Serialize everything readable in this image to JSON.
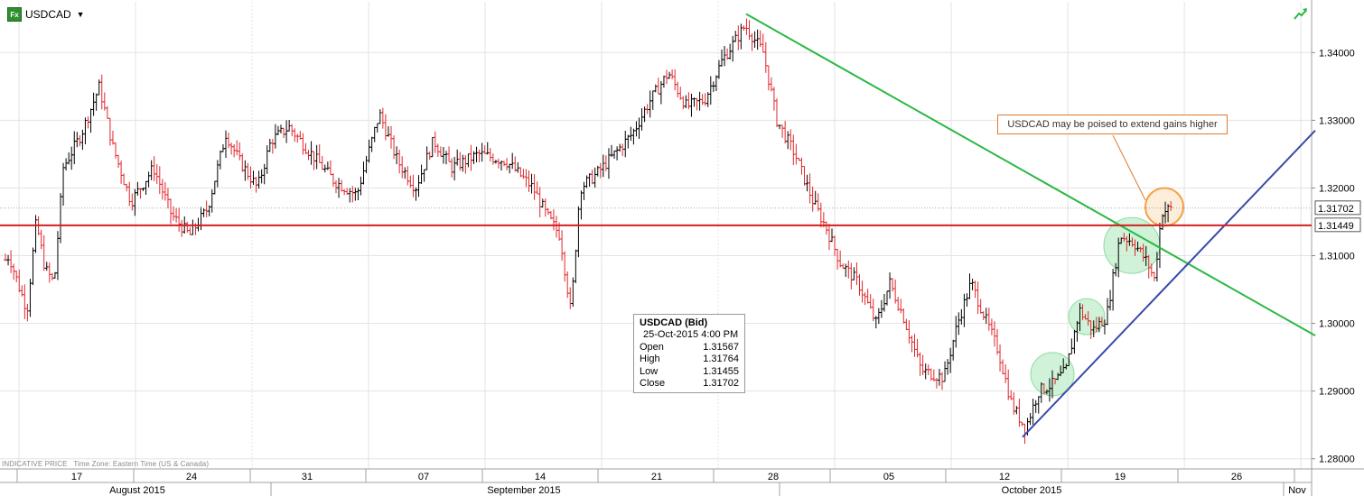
{
  "header": {
    "symbol": "USDCAD",
    "app_icon": "fx-icon",
    "dropdown_icon": "caret-down-icon",
    "trend_icon": "trend-arrow-icon"
  },
  "footer": {
    "indicative": "INDICATIVE PRICE",
    "timezone": "Time Zone: Eastern Time (US & Canada)"
  },
  "annotation": {
    "text": "USDCAD may be poised to extend gains higher"
  },
  "infobox": {
    "title": "USDCAD (Bid)",
    "datetime": "25-Oct-2015 4:00 PM",
    "rows": [
      {
        "label": "Open",
        "value": "1.31567"
      },
      {
        "label": "High",
        "value": "1.31764"
      },
      {
        "label": "Low",
        "value": "1.31455"
      },
      {
        "label": "Close",
        "value": "1.31702"
      }
    ]
  },
  "colors": {
    "up_bar": "#000000",
    "down_bar": "#e0262b",
    "resistance_line": "#2bb845",
    "support_line": "#3a4aa8",
    "horizontal_level": "#d42020",
    "highlight_green": "#bfeecb",
    "highlight_orange": "#f5a042"
  },
  "chart_data": {
    "type": "ohlc",
    "instrument": "USDCAD",
    "ylim": [
      1.2785,
      1.3475
    ],
    "y_ticks": [
      1.28,
      1.29,
      1.3,
      1.31,
      1.32,
      1.33,
      1.34
    ],
    "y_tick_labels": [
      "1.28000",
      "1.29000",
      "1.30000",
      "1.31000",
      "1.32000",
      "1.33000",
      "1.34000"
    ],
    "x_day_labels": [
      "17",
      "24",
      "31",
      "07",
      "14",
      "21",
      "28",
      "05",
      "12",
      "19",
      "26"
    ],
    "x_month_labels": [
      "August 2015",
      "September 2015",
      "October 2015",
      "Nov"
    ],
    "current_price": "1.31702",
    "level_price": "1.31449",
    "key_points": [
      {
        "date": "2015-08-20",
        "high": 1.3365
      },
      {
        "date": "2015-09-16",
        "low": 1.301
      },
      {
        "date": "2015-09-29",
        "high": 1.3457
      },
      {
        "date": "2015-10-15",
        "low": 1.2832
      },
      {
        "date": "2015-10-20",
        "high": 1.316
      },
      {
        "date": "2015-10-25",
        "high": 1.31764,
        "low": 1.31455
      }
    ],
    "lines": [
      {
        "name": "",
        "kind": "resistance",
        "from": {
          "date": "2015-09-29",
          "price": 1.3457
        },
        "to": {
          "date": "2015-11-06",
          "price": 1.2982
        }
      },
      {
        "name": "",
        "kind": "support",
        "from": {
          "date": "2015-10-15",
          "price": 1.2832
        },
        "to": {
          "date": "2015-11-06",
          "price": 1.3285
        }
      },
      {
        "name": "",
        "kind": "horizontal",
        "price": 1.31449
      }
    ],
    "highlights": [
      {
        "kind": "green",
        "date": "2015-10-17",
        "price": 1.2925
      },
      {
        "kind": "green",
        "date": "2015-10-19",
        "price": 1.301
      },
      {
        "kind": "green",
        "date": "2015-10-21",
        "price": 1.3115
      },
      {
        "kind": "orange",
        "date": "2015-10-25",
        "price": 1.3172
      }
    ]
  }
}
